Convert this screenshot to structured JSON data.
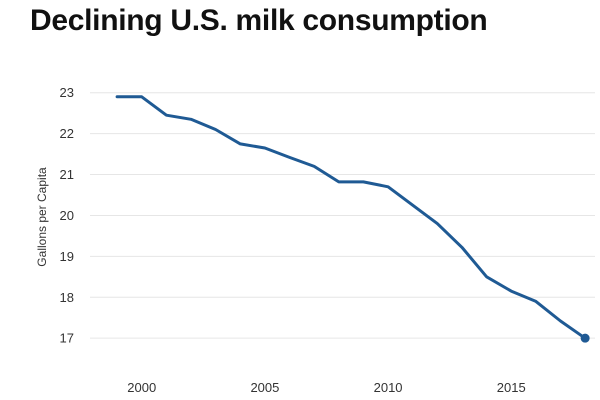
{
  "chart_data": {
    "type": "line",
    "title": "Declining U.S. milk consumption",
    "xlabel": "",
    "ylabel": "Gallons per Capita",
    "xlim": [
      1997.9,
      2018.4
    ],
    "ylim": [
      16.1,
      23.8
    ],
    "xticks": [
      2000,
      2005,
      2010,
      2015
    ],
    "yticks": [
      17,
      18,
      19,
      20,
      21,
      22,
      23
    ],
    "grid": "horizontal",
    "series": [
      {
        "color": "#1f5a94",
        "x": [
          1999,
          2000,
          2001,
          2002,
          2003,
          2004,
          2005,
          2006,
          2007,
          2008,
          2009,
          2010,
          2011,
          2012,
          2013,
          2014,
          2015,
          2016,
          2017,
          2018
        ],
        "values": [
          22.9,
          22.9,
          22.45,
          22.35,
          22.1,
          21.75,
          21.65,
          21.42,
          21.2,
          20.82,
          20.82,
          20.7,
          20.25,
          19.8,
          19.22,
          18.5,
          18.15,
          17.9,
          17.42,
          17.0
        ]
      }
    ]
  }
}
